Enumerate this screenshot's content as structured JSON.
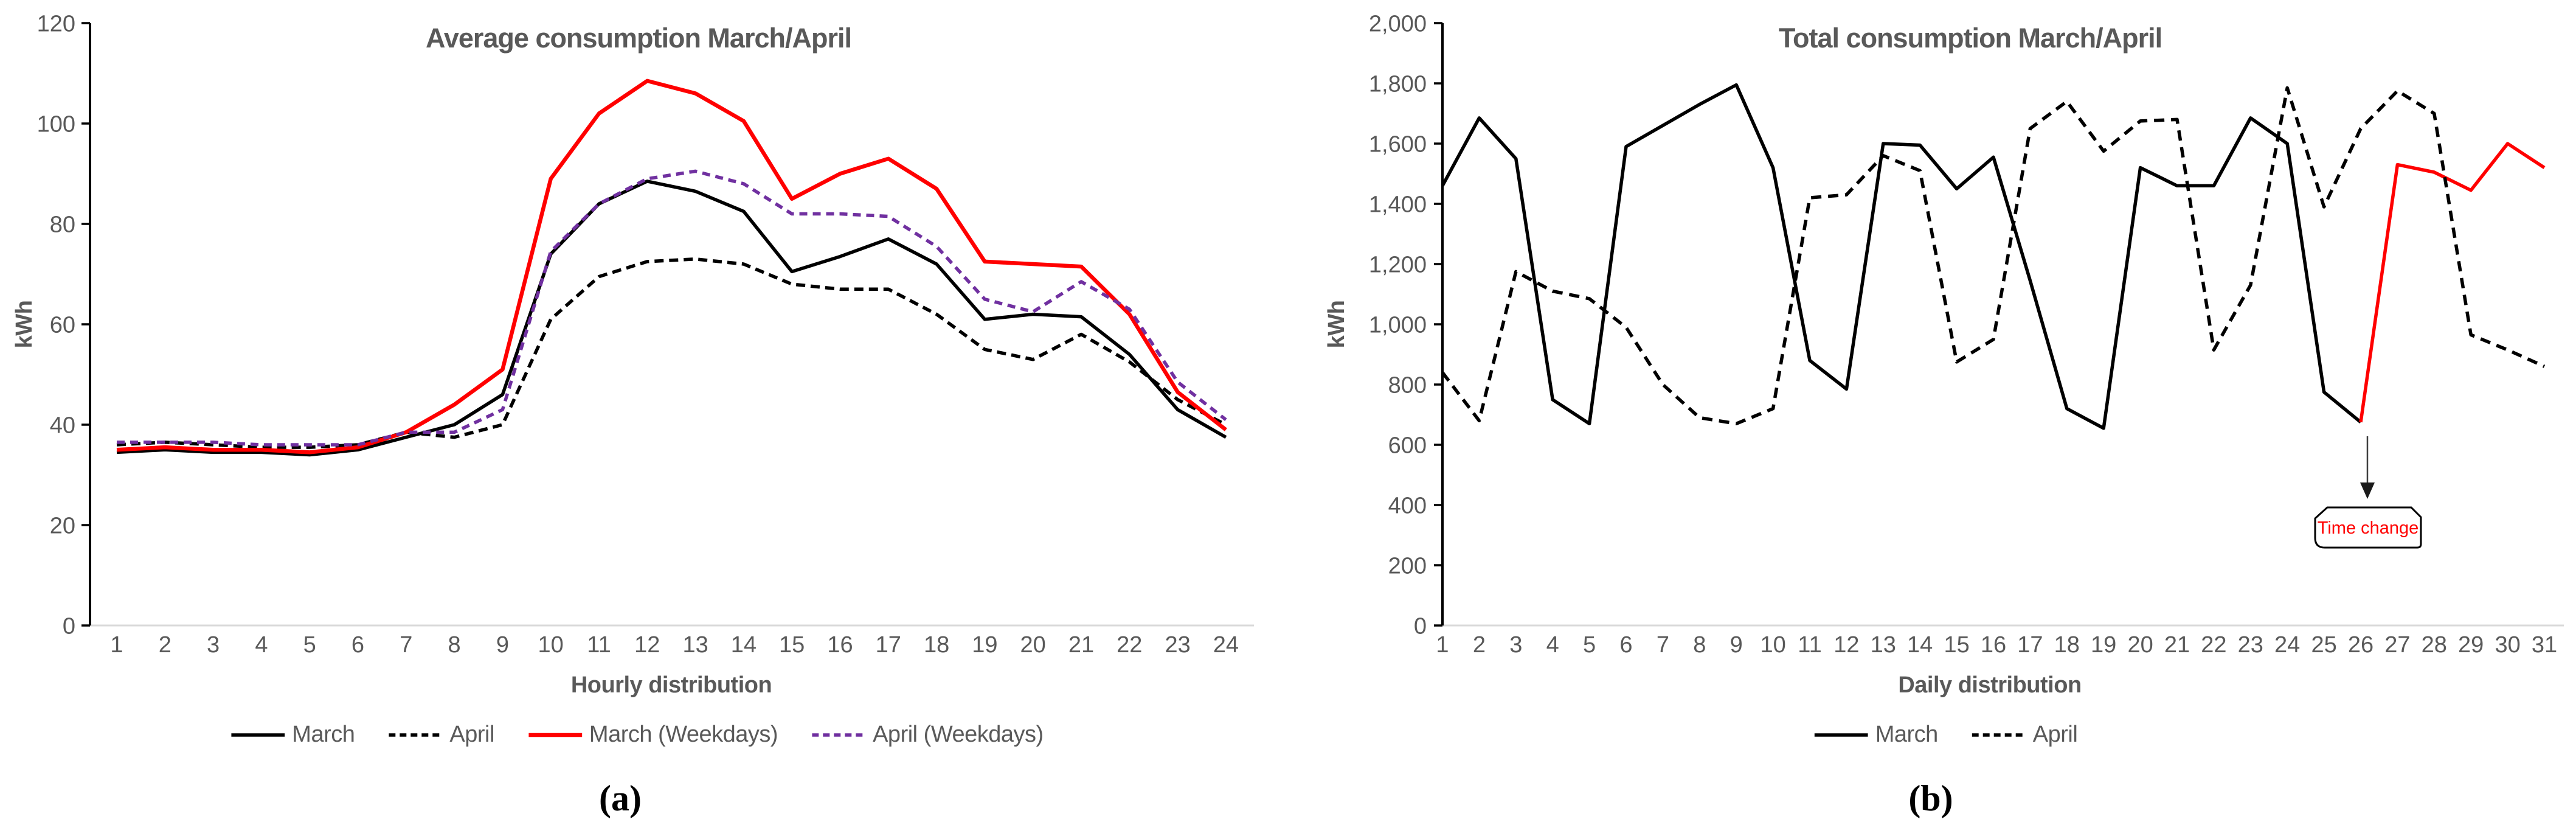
{
  "figure": {
    "background": "#FFFFFF"
  },
  "colors": {
    "title_text": "#595959",
    "axis_text": "#595959",
    "black_series": "#000000",
    "red_series": "#FF0000",
    "purple_series": "#7030A0",
    "value_axis_line": "#000000",
    "category_axis_line": "#D9D9D9",
    "annotation_border": "#000000",
    "annotation_text": "#FF0000",
    "annotation_arrow": "#3F3F3F"
  },
  "chart_data": [
    {
      "id": "average-consumption",
      "type": "line",
      "title": "Average consumption March/April",
      "xlabel": "Hourly distribution",
      "ylabel": "kWh",
      "caption": "(a)",
      "x": [
        1,
        2,
        3,
        4,
        5,
        6,
        7,
        8,
        9,
        10,
        11,
        12,
        13,
        14,
        15,
        16,
        17,
        18,
        19,
        20,
        21,
        22,
        23,
        24
      ],
      "ylim": [
        0,
        120
      ],
      "yticks": [
        0,
        20,
        40,
        60,
        80,
        100,
        120
      ],
      "ytick_labels": [
        "0",
        "20",
        "40",
        "60",
        "80",
        "100",
        "120"
      ],
      "grid": false,
      "legend_position": "bottom",
      "series": [
        {
          "name": "March",
          "color": "#000000",
          "style": "solid",
          "values": [
            34.5,
            35,
            34.5,
            34.5,
            34,
            35,
            37.5,
            40,
            46,
            74,
            84,
            88.5,
            86.5,
            82.5,
            70.5,
            73.5,
            77,
            72,
            61,
            62,
            61.5,
            54,
            43,
            37.5
          ]
        },
        {
          "name": "April",
          "color": "#000000",
          "style": "dashed",
          "values": [
            36,
            36.5,
            36,
            35.5,
            35.5,
            36,
            38.5,
            37.5,
            40,
            61,
            69.5,
            72.5,
            73,
            72,
            68,
            67,
            67,
            62,
            55,
            53,
            58,
            52.5,
            45,
            40
          ]
        },
        {
          "name": "March (Weekdays)",
          "color": "#FF0000",
          "style": "solid",
          "values": [
            35,
            35.5,
            35,
            35,
            34.5,
            35.5,
            38.5,
            44,
            51,
            89,
            102,
            108.5,
            106,
            100.5,
            85,
            90,
            93,
            87,
            72.5,
            72,
            71.5,
            62,
            46.5,
            39
          ]
        },
        {
          "name": "April (Weekdays)",
          "color": "#7030A0",
          "style": "dashed",
          "values": [
            36.5,
            36.5,
            36.5,
            36,
            36,
            36,
            38.5,
            38.5,
            43,
            74.5,
            84,
            89,
            90.5,
            88,
            82,
            82,
            81.5,
            75.5,
            65,
            62.5,
            68.5,
            63,
            48.5,
            41
          ]
        }
      ]
    },
    {
      "id": "total-consumption",
      "type": "line",
      "title": "Total consumption March/April",
      "xlabel": "Daily distribution",
      "ylabel": "kWh",
      "caption": "(b)",
      "x": [
        1,
        2,
        3,
        4,
        5,
        6,
        7,
        8,
        9,
        10,
        11,
        12,
        13,
        14,
        15,
        16,
        17,
        18,
        19,
        20,
        21,
        22,
        23,
        24,
        25,
        26,
        27,
        28,
        29,
        30,
        31
      ],
      "ylim": [
        0,
        2000
      ],
      "yticks": [
        0,
        200,
        400,
        600,
        800,
        1000,
        1200,
        1400,
        1600,
        1800,
        2000
      ],
      "ytick_labels": [
        "0",
        "200",
        "400",
        "600",
        "800",
        "1,000",
        "1,200",
        "1,400",
        "1,600",
        "1,800",
        "2,000"
      ],
      "grid": false,
      "legend_position": "bottom",
      "series": [
        {
          "name": "March",
          "color": "#000000",
          "style": "solid",
          "values": [
            1460,
            1685,
            1550,
            750,
            670,
            1590,
            1660,
            1730,
            1795,
            1520,
            880,
            785,
            1600,
            1595,
            1450,
            1555,
            1145,
            720,
            655,
            1520,
            1460,
            1460,
            1685,
            1600,
            775,
            675,
            1530,
            1505,
            1445,
            1600,
            1520
          ],
          "highlight": {
            "from_day": 26,
            "color": "#FF0000"
          }
        },
        {
          "name": "April",
          "color": "#000000",
          "style": "dashed",
          "values": [
            840,
            680,
            1175,
            1110,
            1085,
            990,
            800,
            690,
            670,
            720,
            1420,
            1430,
            1560,
            1510,
            875,
            950,
            1650,
            1740,
            1575,
            1675,
            1680,
            915,
            1130,
            1785,
            1390,
            1650,
            1775,
            1700,
            965,
            915,
            860
          ]
        }
      ],
      "annotation": {
        "label": "Time change",
        "text_color": "#FF0000",
        "border_color": "#000000",
        "anchor_day": 26.2,
        "arrow_from_kwh": 628,
        "arrow_to_kwh": 422,
        "box_top_kwh": 392,
        "box_bottom_kwh": 258
      }
    }
  ]
}
